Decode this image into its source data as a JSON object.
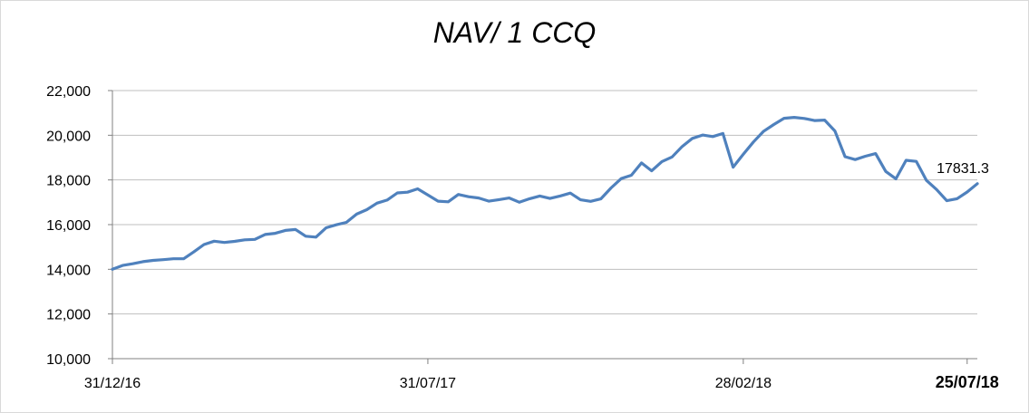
{
  "chart_data": {
    "type": "line",
    "title": "NAV/ 1 CCQ",
    "xlabel": "",
    "ylabel": "",
    "ylim": [
      10000,
      22000
    ],
    "yticks": [
      "10,000",
      "12,000",
      "14,000",
      "16,000",
      "18,000",
      "20,000",
      "22,000"
    ],
    "xticks": [
      {
        "label": "31/12/16",
        "index": 0,
        "bold": false
      },
      {
        "label": "31/07/17",
        "index": 31,
        "bold": false
      },
      {
        "label": "28/02/18",
        "index": 62,
        "bold": false
      },
      {
        "label": "25/07/18",
        "index": 84,
        "bold": true
      }
    ],
    "grid": true,
    "line_color": "#4f81bd",
    "series": [
      {
        "values": [
          14000,
          14170,
          14250,
          14340,
          14400,
          14430,
          14470,
          14470,
          14780,
          15110,
          15260,
          15200,
          15250,
          15320,
          15340,
          15560,
          15610,
          15740,
          15780,
          15480,
          15440,
          15860,
          15990,
          16100,
          16470,
          16670,
          16960,
          17100,
          17420,
          17450,
          17600,
          17330,
          17050,
          17020,
          17350,
          17250,
          17190,
          17050,
          17120,
          17190,
          17000,
          17160,
          17280,
          17170,
          17280,
          17410,
          17110,
          17040,
          17150,
          17640,
          18060,
          18210,
          18760,
          18410,
          18820,
          19030,
          19500,
          19860,
          20010,
          19940,
          20080,
          18570,
          19150,
          19700,
          20180,
          20480,
          20760,
          20800,
          20750,
          20660,
          20680,
          20190,
          19040,
          18910,
          19060,
          19180,
          18380,
          18050,
          18880,
          18830,
          17980,
          17570,
          17070,
          17160,
          17460,
          17831.3
        ],
        "last_label": "17831.3"
      }
    ]
  }
}
